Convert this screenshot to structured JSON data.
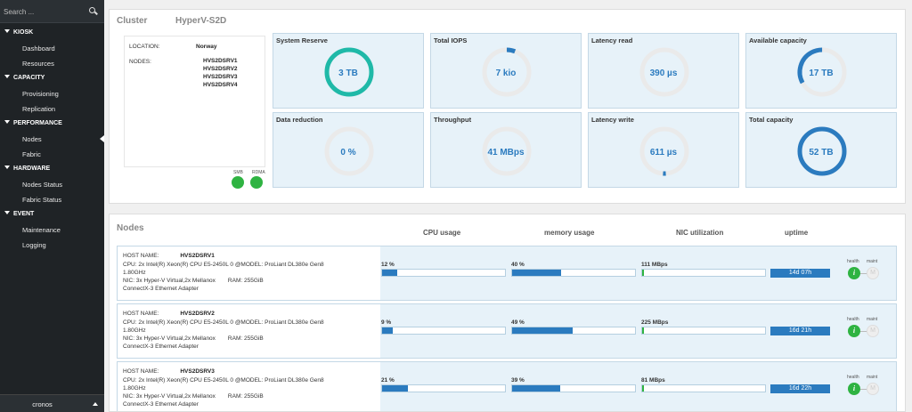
{
  "sidebar": {
    "search_placeholder": "Search ...",
    "sections": [
      {
        "label": "KIOSK",
        "items": [
          "Dashboard",
          "Resources"
        ]
      },
      {
        "label": "CAPACITY",
        "items": [
          "Provisioning",
          "Replication"
        ]
      },
      {
        "label": "PERFORMANCE",
        "items": [
          "Nodes",
          "Fabric"
        ]
      },
      {
        "label": "HARDWARE",
        "items": [
          "Nodes Status",
          "Fabric Status"
        ]
      },
      {
        "label": "EVENT",
        "items": [
          "Maintenance",
          "Logging"
        ]
      }
    ],
    "active_item": "Nodes",
    "user": "cronos"
  },
  "cluster": {
    "title_prefix": "Cluster",
    "title_suffix": "HyperV-S2D",
    "location_label": "LOCATION:",
    "location": "Norway",
    "nodes_label": "NODES:",
    "node_names": [
      "HVS2DSRV1",
      "HVS2DSRV2",
      "HVS2DSRV3",
      "HVS2DSRV4"
    ],
    "smb_label": "SMB",
    "rdma_label": "RDMA",
    "metrics": [
      {
        "title": "System Reserve",
        "value": "3 TB",
        "fill": 1.0,
        "color": "#1fb9a8"
      },
      {
        "title": "Total IOPS",
        "value": "7 kio",
        "fill": 0.06,
        "color": "#2b7bbf"
      },
      {
        "title": "Latency read",
        "value": "390 µs",
        "fill": 0.0,
        "color": "#2b7bbf"
      },
      {
        "title": "Available capacity",
        "value": "17 TB",
        "fill": 0.33,
        "color": "#2b7bbf"
      },
      {
        "title": "Data reduction",
        "value": "0 %",
        "fill": 0.0,
        "color": "#2b7bbf"
      },
      {
        "title": "Throughput",
        "value": "41 MBps",
        "fill": 0.0,
        "color": "#2b7bbf"
      },
      {
        "title": "Latency write",
        "value": "611 µs",
        "fill": 0.02,
        "color": "#2b7bbf"
      },
      {
        "title": "Total capacity",
        "value": "52 TB",
        "fill": 1.0,
        "color": "#2b7bbf"
      }
    ]
  },
  "nodes": {
    "title": "Nodes",
    "columns": [
      "CPU usage",
      "memory usage",
      "NIC utilization",
      "uptime"
    ],
    "host_label": "HOST NAME:",
    "health_label": "health",
    "maint_label": "maint",
    "health_icon": "i",
    "maint_icon": "M",
    "rows": [
      {
        "host": "HVS2DSRV1",
        "cpu_line": "CPU: 2x Intel(R) Xeon(R) CPU E5-2450L 0 @MODEL: ProLiant DL380e Gen8",
        "cpu_line2": "1.80GHz",
        "nic": "NIC: 3x Hyper-V Virtual,2x Mellanox",
        "ram": "RAM: 255GiB",
        "nic2": "ConnectX-3 Ethernet Adapter",
        "cpu": "12 %",
        "cpu_frac": 0.12,
        "mem": "40 %",
        "mem_frac": 0.4,
        "nicu": "111 MBps",
        "uptime": "14d 07h"
      },
      {
        "host": "HVS2DSRV2",
        "cpu_line": "CPU: 2x Intel(R) Xeon(R) CPU E5-2450L 0 @MODEL: ProLiant DL380e Gen8",
        "cpu_line2": "1.80GHz",
        "nic": "NIC: 3x Hyper-V Virtual,2x Mellanox",
        "ram": "RAM: 255GiB",
        "nic2": "ConnectX-3 Ethernet Adapter",
        "cpu": "9 %",
        "cpu_frac": 0.09,
        "mem": "49 %",
        "mem_frac": 0.49,
        "nicu": "225 MBps",
        "uptime": "16d 21h"
      },
      {
        "host": "HVS2DSRV3",
        "cpu_line": "CPU: 2x Intel(R) Xeon(R) CPU E5-2450L 0 @MODEL: ProLiant DL380e Gen8",
        "cpu_line2": "1.80GHz",
        "nic": "NIC: 3x Hyper-V Virtual,2x Mellanox",
        "ram": "RAM: 255GiB",
        "nic2": "ConnectX-3 Ethernet Adapter",
        "cpu": "21 %",
        "cpu_frac": 0.21,
        "mem": "39 %",
        "mem_frac": 0.39,
        "nicu": "81 MBps",
        "uptime": "16d 22h"
      }
    ]
  }
}
